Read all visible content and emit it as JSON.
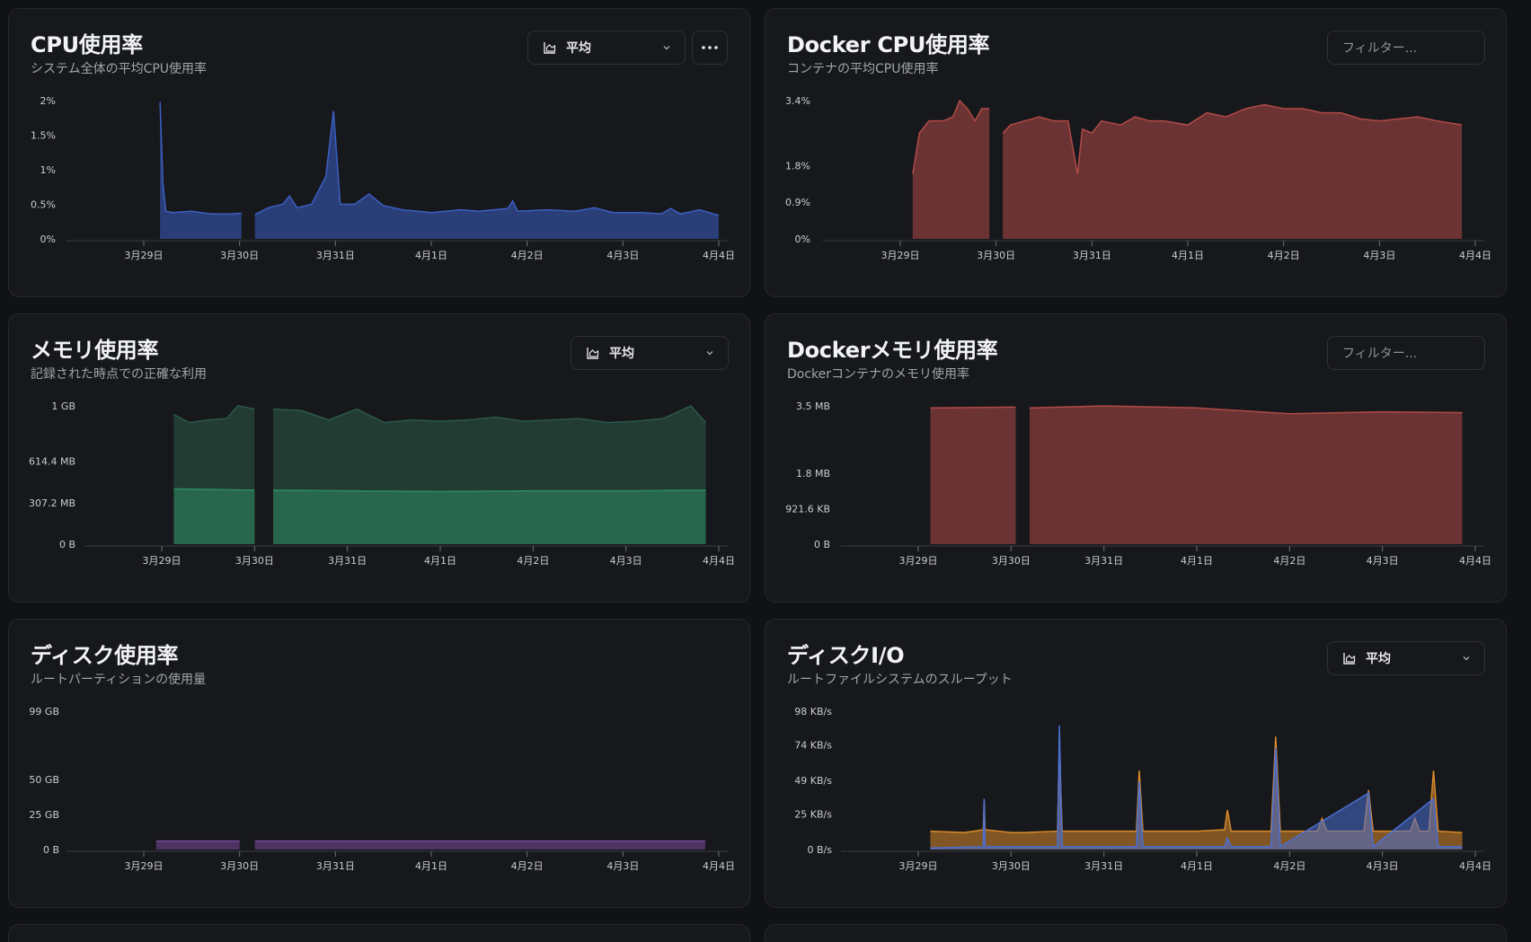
{
  "panels": {
    "cpu": {
      "title": "CPU使用率",
      "subtitle": "システム全体の平均CPU使用率",
      "select_label": "平均",
      "more_icon": "more-horizontal-icon",
      "chart_data": {
        "type": "area",
        "y_ticks": [
          "2%",
          "1.5%",
          "1%",
          "0.5%",
          "0%"
        ],
        "ylim": [
          0,
          2
        ],
        "y_unit": "%",
        "x_ticks": [
          "3月29日",
          "3月30日",
          "3月31日",
          "4月1日",
          "4月2日",
          "4月3日",
          "4月4日"
        ],
        "xlim": [
          0,
          6.05
        ],
        "color": "#3b5fc4",
        "series": [
          {
            "values": [
              [
                0.17,
                1.98
              ],
              [
                0.2,
                0.8
              ],
              [
                0.23,
                0.4
              ],
              [
                0.3,
                0.38
              ],
              [
                0.5,
                0.4
              ],
              [
                0.7,
                0.36
              ],
              [
                0.9,
                0.36
              ],
              [
                1.02,
                0.37
              ]
            ]
          },
          {
            "values": [
              [
                1.16,
                0.35
              ],
              [
                1.3,
                0.45
              ],
              [
                1.45,
                0.5
              ],
              [
                1.52,
                0.62
              ],
              [
                1.6,
                0.45
              ],
              [
                1.75,
                0.5
              ],
              [
                1.9,
                0.9
              ],
              [
                1.98,
                1.85
              ],
              [
                2.05,
                0.5
              ],
              [
                2.2,
                0.5
              ],
              [
                2.35,
                0.65
              ],
              [
                2.5,
                0.48
              ],
              [
                2.7,
                0.42
              ],
              [
                3.0,
                0.38
              ],
              [
                3.3,
                0.42
              ],
              [
                3.5,
                0.4
              ],
              [
                3.8,
                0.44
              ],
              [
                3.85,
                0.55
              ],
              [
                3.9,
                0.4
              ],
              [
                4.2,
                0.42
              ],
              [
                4.5,
                0.4
              ],
              [
                4.7,
                0.45
              ],
              [
                4.9,
                0.38
              ],
              [
                5.2,
                0.38
              ],
              [
                5.4,
                0.36
              ],
              [
                5.5,
                0.44
              ],
              [
                5.6,
                0.36
              ],
              [
                5.8,
                0.42
              ],
              [
                6.0,
                0.34
              ]
            ]
          }
        ]
      }
    },
    "docker_cpu": {
      "title": "Docker CPU使用率",
      "subtitle": "コンテナの平均CPU使用率",
      "filter_placeholder": "フィルター...",
      "chart_data": {
        "type": "area",
        "y_ticks": [
          "3.4%",
          "1.8%",
          "0.9%",
          "0%"
        ],
        "y_tick_values": [
          3.4,
          1.8,
          0.9,
          0
        ],
        "ylim": [
          0,
          3.4
        ],
        "y_unit": "%",
        "x_ticks": [
          "3月29日",
          "3月30日",
          "3月31日",
          "4月1日",
          "4月2日",
          "4月3日",
          "4月4日"
        ],
        "xlim": [
          0,
          5.86
        ],
        "color": "#b14a47",
        "series": [
          {
            "values": [
              [
                0.13,
                1.6
              ],
              [
                0.2,
                2.6
              ],
              [
                0.3,
                2.9
              ],
              [
                0.45,
                2.9
              ],
              [
                0.55,
                3.0
              ],
              [
                0.62,
                3.4
              ],
              [
                0.7,
                3.2
              ],
              [
                0.78,
                2.9
              ],
              [
                0.85,
                3.2
              ],
              [
                0.93,
                3.2
              ]
            ]
          },
          {
            "values": [
              [
                1.07,
                2.6
              ],
              [
                1.15,
                2.8
              ],
              [
                1.3,
                2.9
              ],
              [
                1.45,
                3.0
              ],
              [
                1.6,
                2.9
              ],
              [
                1.75,
                2.9
              ],
              [
                1.85,
                1.6
              ],
              [
                1.9,
                2.7
              ],
              [
                2.0,
                2.6
              ],
              [
                2.1,
                2.9
              ],
              [
                2.3,
                2.8
              ],
              [
                2.45,
                3.0
              ],
              [
                2.6,
                2.9
              ],
              [
                2.75,
                2.9
              ],
              [
                3.0,
                2.8
              ],
              [
                3.2,
                3.1
              ],
              [
                3.4,
                3.0
              ],
              [
                3.6,
                3.2
              ],
              [
                3.8,
                3.3
              ],
              [
                4.0,
                3.2
              ],
              [
                4.2,
                3.2
              ],
              [
                4.4,
                3.1
              ],
              [
                4.6,
                3.1
              ],
              [
                4.8,
                2.95
              ],
              [
                5.0,
                2.9
              ],
              [
                5.2,
                2.95
              ],
              [
                5.4,
                3.0
              ],
              [
                5.6,
                2.9
              ],
              [
                5.86,
                2.8
              ]
            ]
          }
        ]
      }
    },
    "memory": {
      "title": "メモリ使用率",
      "subtitle": "記録された時点での正確な利用",
      "select_label": "平均",
      "chart_data": {
        "type": "area",
        "y_ticks": [
          "1 GB",
          "614.4 MB",
          "307.2 MB",
          "0 B"
        ],
        "y_tick_values": [
          1024,
          614.4,
          307.2,
          0
        ],
        "ylim": [
          0,
          1024
        ],
        "y_unit": "MB",
        "x_ticks": [
          "3月29日",
          "3月30日",
          "3月31日",
          "4月1日",
          "4月2日",
          "4月3日",
          "4月4日"
        ],
        "xlim": [
          0,
          6.0
        ],
        "series": [
          {
            "color": "#2b5a47",
            "values": [
              [
                0.13,
                960
              ],
              [
                0.3,
                900
              ],
              [
                0.5,
                920
              ],
              [
                0.7,
                930
              ],
              [
                0.82,
                1024
              ],
              [
                1.0,
                1000
              ]
            ],
            "values_b": [
              [
                1.2,
                1000
              ],
              [
                1.5,
                990
              ],
              [
                1.8,
                920
              ],
              [
                2.1,
                1000
              ],
              [
                2.4,
                900
              ],
              [
                2.7,
                920
              ],
              [
                3.0,
                910
              ],
              [
                3.3,
                920
              ],
              [
                3.6,
                940
              ],
              [
                3.9,
                910
              ],
              [
                4.2,
                920
              ],
              [
                4.5,
                930
              ],
              [
                4.8,
                900
              ],
              [
                5.1,
                910
              ],
              [
                5.4,
                930
              ],
              [
                5.7,
                1024
              ],
              [
                5.86,
                900
              ]
            ]
          },
          {
            "color": "#2f8a64",
            "values": [
              [
                0.13,
                410
              ],
              [
                1.0,
                400
              ]
            ],
            "values_b": [
              [
                1.2,
                400
              ],
              [
                2.0,
                395
              ],
              [
                3.0,
                390
              ],
              [
                4.0,
                395
              ],
              [
                5.0,
                395
              ],
              [
                5.86,
                400
              ]
            ]
          }
        ]
      }
    },
    "docker_memory": {
      "title": "Dockerメモリ使用率",
      "subtitle": "Dockerコンテナのメモリ使用率",
      "filter_placeholder": "フィルター...",
      "chart_data": {
        "type": "area",
        "y_ticks": [
          "3.5 MB",
          "1.8 MB",
          "921.6 KB",
          "0 B"
        ],
        "y_tick_values": [
          3.5,
          1.8,
          0.9,
          0
        ],
        "ylim": [
          0,
          3.5
        ],
        "y_unit": "MB",
        "x_ticks": [
          "3月29日",
          "3月30日",
          "3月31日",
          "4月1日",
          "4月2日",
          "4月3日",
          "4月4日"
        ],
        "xlim": [
          0,
          5.86
        ],
        "color": "#b14a47",
        "series": [
          {
            "values": [
              [
                0.13,
                3.45
              ],
              [
                1.05,
                3.47
              ]
            ]
          },
          {
            "values": [
              [
                1.2,
                3.45
              ],
              [
                2.0,
                3.5
              ],
              [
                3.0,
                3.45
              ],
              [
                4.0,
                3.3
              ],
              [
                5.0,
                3.35
              ],
              [
                5.86,
                3.33
              ]
            ]
          }
        ]
      }
    },
    "disk": {
      "title": "ディスク使用率",
      "subtitle": "ルートパーティションの使用量",
      "chart_data": {
        "type": "area",
        "y_ticks": [
          "99 GB",
          "50 GB",
          "25 GB",
          "0 B"
        ],
        "y_tick_values": [
          99,
          50,
          25,
          0
        ],
        "ylim": [
          0,
          99
        ],
        "y_unit": "GB",
        "x_ticks": [
          "3月29日",
          "3月30日",
          "3月31日",
          "4月1日",
          "4月2日",
          "4月3日",
          "4月4日"
        ],
        "xlim": [
          0,
          6.0
        ],
        "color": "#7a4a9c",
        "series": [
          {
            "values": [
              [
                0.13,
                6
              ],
              [
                1.0,
                6
              ]
            ]
          },
          {
            "values": [
              [
                1.16,
                6
              ],
              [
                5.86,
                6
              ]
            ]
          }
        ]
      }
    },
    "disk_io": {
      "title": "ディスクI/O",
      "subtitle": "ルートファイルシステムのスループット",
      "select_label": "平均",
      "chart_data": {
        "type": "area",
        "y_ticks": [
          "98 KB/s",
          "74 KB/s",
          "49 KB/s",
          "25 KB/s",
          "0 B/s"
        ],
        "y_tick_values": [
          98,
          74,
          49,
          25,
          0
        ],
        "ylim": [
          0,
          98
        ],
        "y_unit": "KB/s",
        "x_ticks": [
          "3月29日",
          "3月30日",
          "3月31日",
          "4月1日",
          "4月2日",
          "4月3日",
          "4月4日"
        ],
        "xlim": [
          0,
          6.0
        ],
        "series": [
          {
            "name": "",
            "color": "#d98a2b",
            "values": [
              [
                0.13,
                13
              ],
              [
                0.5,
                12
              ],
              [
                0.7,
                14
              ],
              [
                0.71,
                35
              ],
              [
                0.72,
                14
              ],
              [
                1.0,
                12
              ],
              [
                1.15,
                12
              ],
              [
                1.5,
                13
              ],
              [
                1.52,
                75
              ],
              [
                1.55,
                13
              ],
              [
                2.0,
                13
              ],
              [
                2.35,
                13
              ],
              [
                2.38,
                56
              ],
              [
                2.42,
                13
              ],
              [
                3.0,
                13
              ],
              [
                3.3,
                14
              ],
              [
                3.33,
                28
              ],
              [
                3.37,
                13
              ],
              [
                3.8,
                13
              ],
              [
                3.85,
                80
              ],
              [
                3.9,
                13
              ],
              [
                4.3,
                13
              ],
              [
                4.35,
                22
              ],
              [
                4.4,
                13
              ],
              [
                4.8,
                13
              ],
              [
                4.85,
                42
              ],
              [
                4.9,
                13
              ],
              [
                5.3,
                13
              ],
              [
                5.35,
                22
              ],
              [
                5.4,
                13
              ],
              [
                5.5,
                13
              ],
              [
                5.55,
                56
              ],
              [
                5.6,
                13
              ],
              [
                5.86,
                12
              ]
            ]
          },
          {
            "name": "",
            "color": "#4a6fd1",
            "values": [
              [
                0.13,
                1
              ],
              [
                0.7,
                2
              ],
              [
                0.71,
                36
              ],
              [
                0.72,
                2
              ],
              [
                1.5,
                2
              ],
              [
                1.52,
                88
              ],
              [
                1.55,
                2
              ],
              [
                2.0,
                2
              ],
              [
                2.35,
                2
              ],
              [
                2.38,
                48
              ],
              [
                2.42,
                2
              ],
              [
                3.3,
                2
              ],
              [
                3.33,
                8
              ],
              [
                3.37,
                2
              ],
              [
                3.8,
                2
              ],
              [
                3.85,
                72
              ],
              [
                3.9,
                2
              ],
              [
                4.85,
                40
              ],
              [
                4.9,
                2
              ],
              [
                5.55,
                36
              ],
              [
                5.6,
                2
              ],
              [
                5.86,
                2
              ]
            ]
          }
        ]
      }
    }
  }
}
